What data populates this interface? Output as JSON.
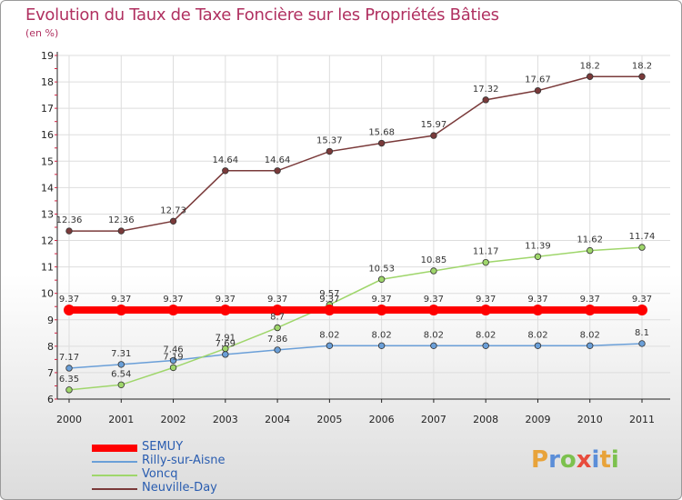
{
  "title": "Evolution du Taux de Taxe Foncière sur les Propriétés Bâties",
  "subtitle": "(en %)",
  "logo": {
    "letters": [
      "P",
      "r",
      "o",
      "x",
      "i",
      "t",
      "i"
    ],
    "colors": [
      "#e8a33a",
      "#5b8ed8",
      "#7cc14e",
      "#e84c3d",
      "#5b8ed8",
      "#e8a33a",
      "#7cc14e"
    ]
  },
  "chart_data": {
    "type": "line",
    "title": "Evolution du Taux de Taxe Foncière sur les Propriétés Bâties",
    "ylabel": "(en %)",
    "xlabel": "",
    "x": [
      "2000",
      "2001",
      "2002",
      "2003",
      "2004",
      "2005",
      "2006",
      "2007",
      "2008",
      "2009",
      "2010",
      "2011"
    ],
    "ylim": [
      6,
      19
    ],
    "yticks": [
      "6",
      "7",
      "8",
      "9",
      "10",
      "11",
      "12",
      "13",
      "14",
      "15",
      "16",
      "17",
      "18",
      "19"
    ],
    "grid": true,
    "series": [
      {
        "name": "SEMUY",
        "color": "#ff0000",
        "values": [
          9.37,
          9.37,
          9.37,
          9.37,
          9.37,
          9.37,
          9.37,
          9.37,
          9.37,
          9.37,
          9.37,
          9.37
        ],
        "labels": [
          "9.37",
          "9.37",
          "9.37",
          "9.37",
          "9.37",
          "9.37",
          "9.37",
          "9.37",
          "9.37",
          "9.37",
          "9.37",
          "9.37"
        ]
      },
      {
        "name": "Rilly-sur-Aisne",
        "color": "#6a9fd8",
        "values": [
          7.17,
          7.31,
          7.46,
          7.69,
          7.86,
          8.02,
          8.02,
          8.02,
          8.02,
          8.02,
          8.02,
          8.1
        ],
        "labels": [
          "7.17",
          "7.31",
          "7.46",
          "7.69",
          "7.86",
          "8.02",
          "8.02",
          "8.02",
          "8.02",
          "8.02",
          "8.02",
          "8.1"
        ]
      },
      {
        "name": "Voncq",
        "color": "#9fd66b",
        "values": [
          6.35,
          6.54,
          7.19,
          7.91,
          8.7,
          9.57,
          10.53,
          10.85,
          11.17,
          11.39,
          11.62,
          11.74
        ],
        "labels": [
          "6.35",
          "6.54",
          "7.19",
          "7.91",
          "8.7",
          "9.57",
          "10.53",
          "10.85",
          "11.17",
          "11.39",
          "11.62",
          "11.74"
        ]
      },
      {
        "name": "Neuville-Day",
        "color": "#7a3a3a",
        "values": [
          12.36,
          12.36,
          12.73,
          14.64,
          14.64,
          15.37,
          15.68,
          15.97,
          17.32,
          17.67,
          18.2,
          18.2
        ],
        "labels": [
          "12.36",
          "12.36",
          "12.73",
          "14.64",
          "14.64",
          "15.37",
          "15.68",
          "15.97",
          "17.32",
          "17.67",
          "18.2",
          "18.2"
        ]
      }
    ],
    "legend": [
      "SEMUY",
      "Rilly-sur-Aisne",
      "Voncq",
      "Neuville-Day"
    ],
    "legend_position": "bottom-left"
  }
}
